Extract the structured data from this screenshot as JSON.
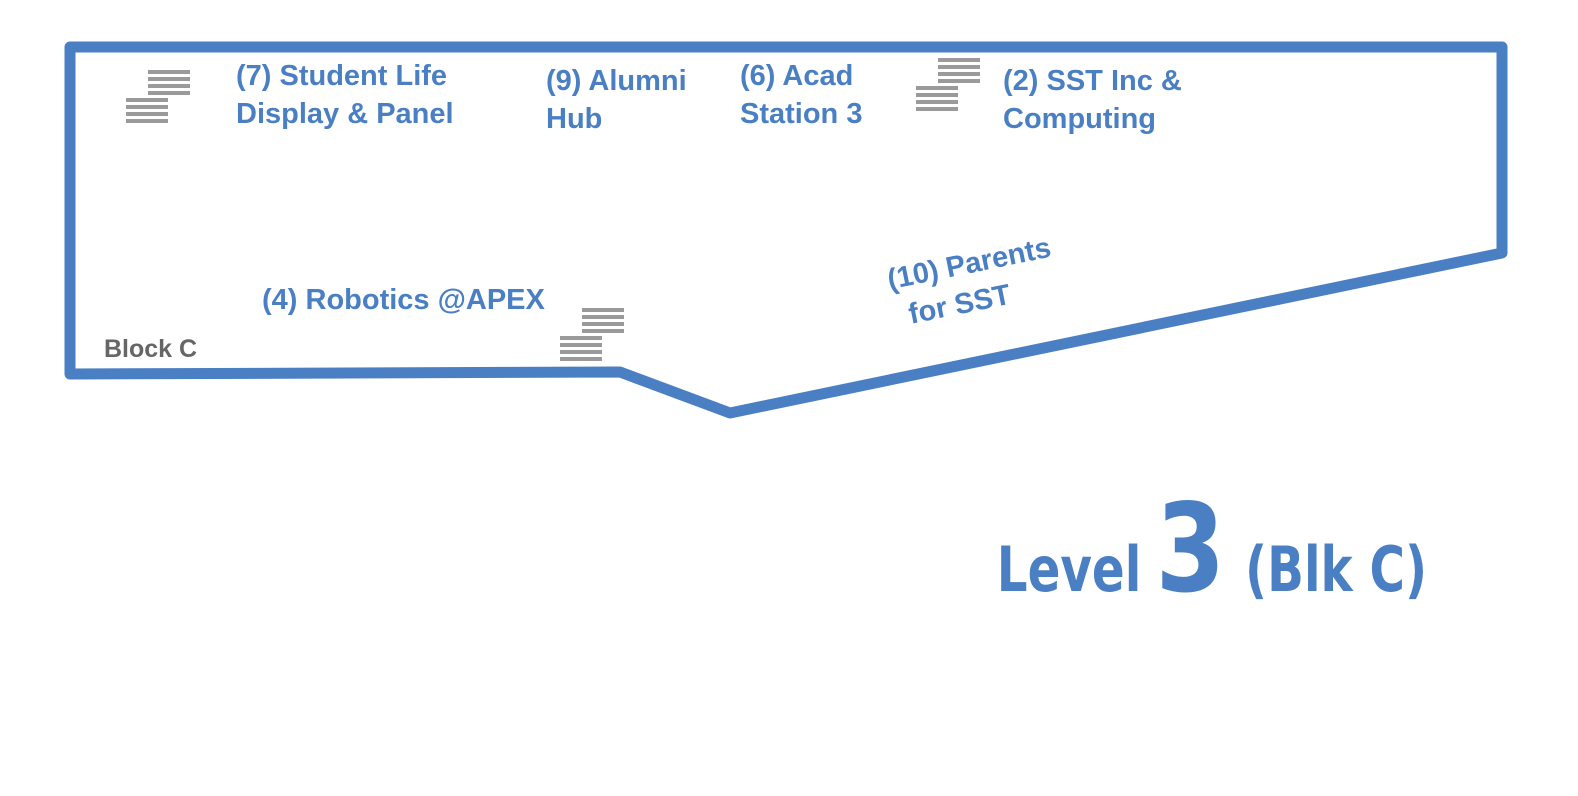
{
  "map": {
    "block_label": "Block C",
    "outline_color": "#4a7fc3",
    "stairs_color": "#9a9a9a",
    "stairs_icon": "staircase-icon"
  },
  "locations": [
    {
      "id": "7",
      "line1": "(7) Student Life",
      "line2": "Display & Panel"
    },
    {
      "id": "9",
      "line1": "(9)  Alumni",
      "line2": "Hub"
    },
    {
      "id": "6",
      "line1": "(6) Acad",
      "line2": "Station 3"
    },
    {
      "id": "2",
      "line1": "(2) SST Inc &",
      "line2": "Computing"
    },
    {
      "id": "4",
      "line1": "(4) Robotics @APEX",
      "line2": ""
    },
    {
      "id": "10",
      "line1": "(10)  Parents",
      "line2": "for SST"
    }
  ],
  "level": {
    "word": "Level",
    "number": "3",
    "block": "(Blk C)"
  }
}
